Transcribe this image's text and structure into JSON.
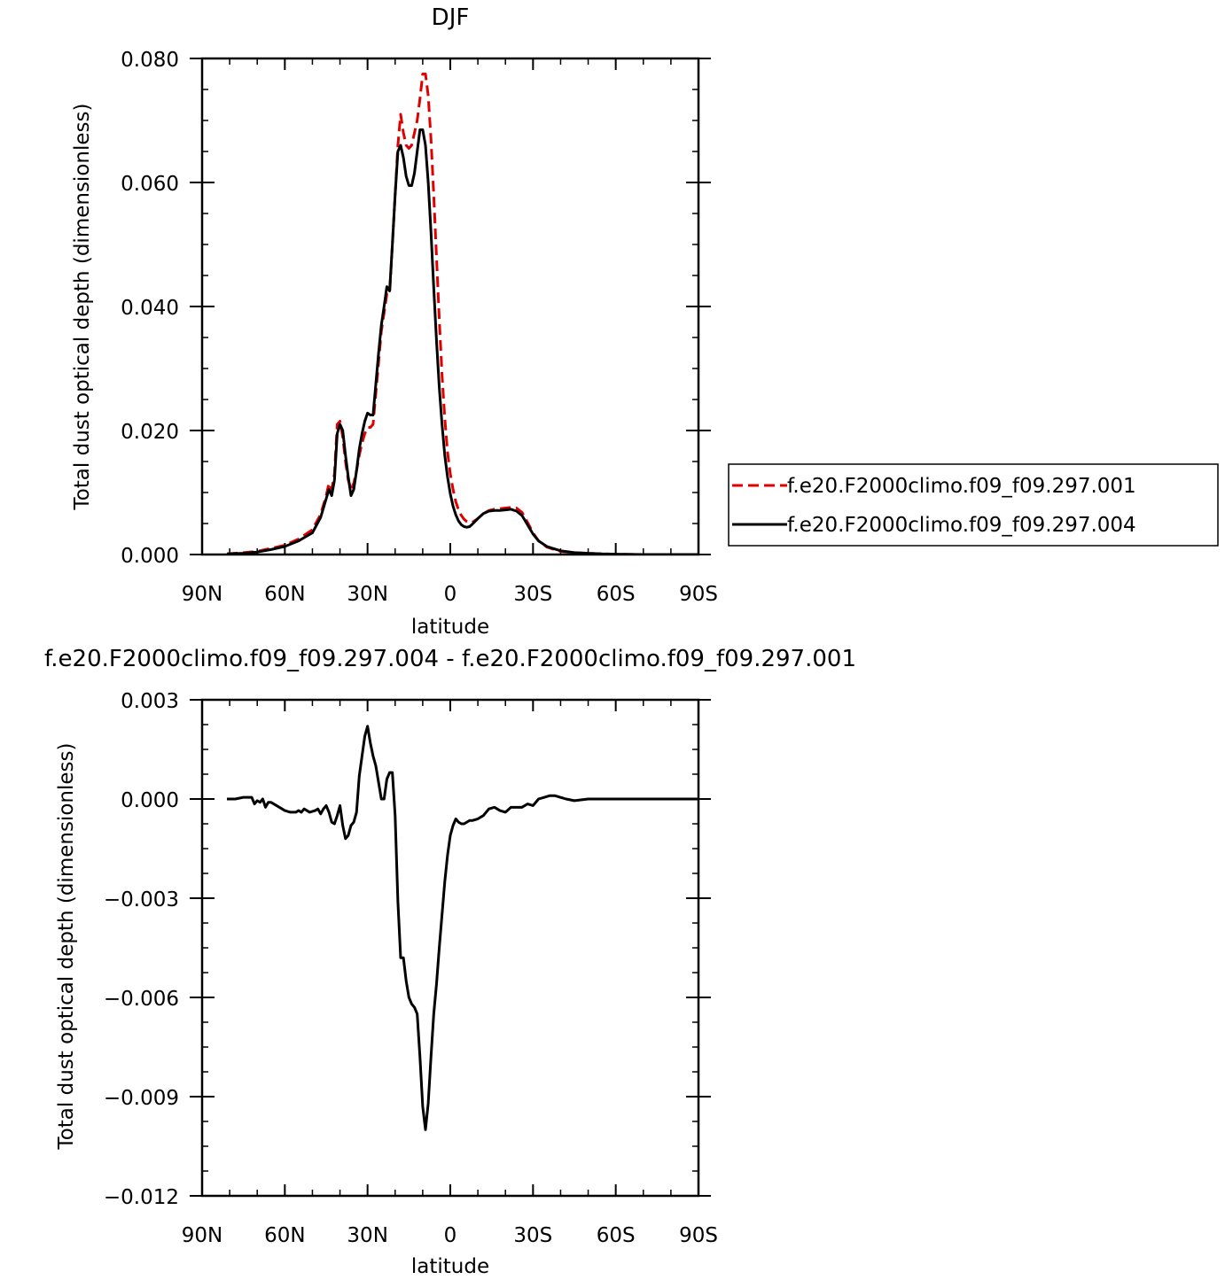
{
  "chart_data": [
    {
      "type": "line",
      "title": "DJF",
      "xlabel": "latitude",
      "ylabel": "Total dust optical depth (dimensionless)",
      "xlim": [
        90,
        -90
      ],
      "ylim": [
        0,
        0.08
      ],
      "x_tick_values": [
        90,
        60,
        30,
        0,
        -30,
        -60,
        -90
      ],
      "x_tick_labels": [
        "90N",
        "60N",
        "30N",
        "0",
        "30S",
        "60S",
        "90S"
      ],
      "y_tick_values": [
        0,
        0.02,
        0.04,
        0.06,
        0.08
      ],
      "y_tick_labels": [
        "0.000",
        "0.020",
        "0.040",
        "0.060",
        "0.080"
      ],
      "legend_position": "right",
      "series": [
        {
          "name": "f.e20.F2000climo.f09_f09.297.001",
          "color": "#e00000",
          "dash": "dashed",
          "x": [
            81,
            75,
            70,
            65,
            60,
            55,
            50,
            47,
            45,
            44,
            43,
            42,
            41,
            40,
            39,
            38,
            37,
            36,
            35,
            34,
            33,
            32,
            31,
            30,
            29,
            28,
            27,
            26,
            25,
            24,
            23,
            22,
            21,
            20,
            19,
            18,
            17,
            16,
            15,
            14,
            13,
            12,
            11,
            10,
            9,
            8,
            7,
            6,
            5,
            4,
            3,
            2,
            1,
            0,
            -1,
            -2,
            -3,
            -4,
            -5,
            -6,
            -7,
            -8,
            -10,
            -12,
            -14,
            -16,
            -18,
            -20,
            -22,
            -24,
            -26,
            -28,
            -30,
            -32,
            -35,
            -40,
            -45,
            -50,
            -55,
            -60,
            -70,
            -80,
            -90
          ],
          "y": [
            0.0001,
            0.0003,
            0.0005,
            0.001,
            0.0015,
            0.0025,
            0.004,
            0.0065,
            0.0095,
            0.0115,
            0.0105,
            0.013,
            0.021,
            0.0215,
            0.019,
            0.015,
            0.012,
            0.0105,
            0.0115,
            0.0135,
            0.016,
            0.018,
            0.0195,
            0.0205,
            0.0205,
            0.021,
            0.026,
            0.031,
            0.036,
            0.039,
            0.042,
            0.042,
            0.05,
            0.058,
            0.066,
            0.071,
            0.068,
            0.066,
            0.0655,
            0.066,
            0.068,
            0.07,
            0.0735,
            0.0775,
            0.0775,
            0.074,
            0.067,
            0.058,
            0.048,
            0.038,
            0.029,
            0.022,
            0.0165,
            0.013,
            0.0105,
            0.0085,
            0.0072,
            0.0063,
            0.0057,
            0.0053,
            0.0051,
            0.0052,
            0.0058,
            0.0066,
            0.0071,
            0.0073,
            0.0074,
            0.0075,
            0.0076,
            0.0075,
            0.0068,
            0.0052,
            0.0035,
            0.0022,
            0.0012,
            0.0005,
            0.0003,
            0.0002,
            0.0001,
            5e-05,
            0.0,
            0.0,
            0.0
          ]
        },
        {
          "name": "f.e20.F2000climo.f09_f09.297.004",
          "color": "#000000",
          "dash": "solid",
          "x": [
            81,
            75,
            70,
            65,
            60,
            55,
            50,
            47,
            45,
            44,
            43,
            42,
            41,
            40,
            39,
            38,
            37,
            36,
            35,
            34,
            33,
            32,
            31,
            30,
            29,
            28,
            27,
            26,
            25,
            24,
            23,
            22,
            21,
            20,
            19,
            18,
            17,
            16,
            15,
            14,
            13,
            12,
            11,
            10,
            9,
            8,
            7,
            6,
            5,
            4,
            3,
            2,
            1,
            0,
            -1,
            -2,
            -3,
            -4,
            -5,
            -6,
            -7,
            -8,
            -10,
            -12,
            -14,
            -16,
            -18,
            -20,
            -22,
            -24,
            -26,
            -28,
            -30,
            -32,
            -35,
            -40,
            -45,
            -50,
            -55,
            -60,
            -70,
            -80,
            -90
          ],
          "y": [
            0.0001,
            0.0002,
            0.0004,
            0.0008,
            0.0013,
            0.0022,
            0.0035,
            0.006,
            0.009,
            0.0105,
            0.0095,
            0.012,
            0.0195,
            0.021,
            0.02,
            0.016,
            0.0125,
            0.0095,
            0.0105,
            0.0135,
            0.017,
            0.0195,
            0.0215,
            0.0228,
            0.0225,
            0.0225,
            0.0275,
            0.0325,
            0.037,
            0.04,
            0.0432,
            0.0425,
            0.05,
            0.058,
            0.065,
            0.066,
            0.064,
            0.061,
            0.0595,
            0.0595,
            0.0615,
            0.065,
            0.0685,
            0.0685,
            0.066,
            0.06,
            0.052,
            0.043,
            0.0345,
            0.027,
            0.021,
            0.016,
            0.0125,
            0.0098,
            0.0078,
            0.0064,
            0.0054,
            0.0048,
            0.0045,
            0.0044,
            0.0045,
            0.0049,
            0.0058,
            0.0066,
            0.007,
            0.0071,
            0.0071,
            0.0072,
            0.0073,
            0.007,
            0.0063,
            0.0048,
            0.0033,
            0.0022,
            0.0013,
            0.0006,
            0.0003,
            0.0002,
            0.0001,
            5e-05,
            0.0,
            0.0,
            0.0
          ]
        }
      ]
    },
    {
      "type": "line",
      "title": "f.e20.F2000climo.f09_f09.297.004 - f.e20.F2000climo.f09_f09.297.001",
      "xlabel": "latitude",
      "ylabel": "Total dust optical depth (dimensionless)",
      "xlim": [
        90,
        -90
      ],
      "ylim": [
        -0.012,
        0.003
      ],
      "x_tick_values": [
        90,
        60,
        30,
        0,
        -30,
        -60,
        -90
      ],
      "x_tick_labels": [
        "90N",
        "60N",
        "30N",
        "0",
        "30S",
        "60S",
        "90S"
      ],
      "y_tick_values": [
        0.003,
        0.0,
        -0.003,
        -0.006,
        -0.009,
        -0.012
      ],
      "y_tick_labels": [
        "0.003",
        "0.000",
        "−0.003",
        "−0.006",
        "−0.009",
        "−0.012"
      ],
      "series": [
        {
          "color": "#000000",
          "dash": "solid",
          "x": [
            81,
            78,
            75,
            72,
            71,
            70,
            69,
            68,
            67,
            66,
            65,
            63,
            61,
            60,
            58,
            56,
            55,
            54,
            53,
            51,
            49,
            48,
            47,
            46,
            45,
            44,
            43,
            42,
            41,
            40,
            39,
            38,
            37,
            36,
            35,
            34,
            33,
            32,
            31,
            30,
            29,
            28,
            27,
            26,
            25,
            24,
            23,
            22,
            21,
            20,
            19,
            18,
            17,
            16,
            15,
            14,
            13,
            12,
            11,
            10,
            9,
            8,
            7,
            6,
            5,
            4,
            3,
            2,
            1,
            0,
            -1,
            -2,
            -3,
            -4,
            -5,
            -6,
            -7,
            -8,
            -10,
            -12,
            -14,
            -16,
            -18,
            -20,
            -22,
            -24,
            -26,
            -28,
            -30,
            -32,
            -34,
            -36,
            -38,
            -40,
            -42,
            -45,
            -50,
            -55,
            -60,
            -70,
            -80,
            -90
          ],
          "y": [
            0.0,
            0.0,
            5e-05,
            5e-05,
            -0.00015,
            -5e-05,
            -0.0001,
            0.0,
            -0.00025,
            -0.0001,
            -0.0001,
            -0.0002,
            -0.0003,
            -0.00035,
            -0.0004,
            -0.0004,
            -0.00035,
            -0.0004,
            -0.0003,
            -0.0004,
            -0.00035,
            -0.0003,
            -0.00045,
            -0.0003,
            -0.0002,
            -0.0004,
            -0.0007,
            -0.00075,
            -0.0005,
            -0.0002,
            -0.0008,
            -0.0012,
            -0.0011,
            -0.0008,
            -0.0007,
            -0.0004,
            0.0007,
            0.0013,
            0.0019,
            0.0022,
            0.0017,
            0.0013,
            0.001,
            0.0005,
            0.0,
            0.0,
            0.0006,
            0.0008,
            0.0008,
            -0.0005,
            -0.0031,
            -0.0048,
            -0.0048,
            -0.0055,
            -0.006,
            -0.0062,
            -0.0063,
            -0.0065,
            -0.0078,
            -0.0093,
            -0.01,
            -0.0092,
            -0.0078,
            -0.0065,
            -0.0056,
            -0.0045,
            -0.0035,
            -0.0025,
            -0.0017,
            -0.0011,
            -0.0008,
            -0.0006,
            -0.0007,
            -0.00075,
            -0.00075,
            -0.0007,
            -0.00065,
            -0.00065,
            -0.0006,
            -0.0005,
            -0.0003,
            -0.00025,
            -0.00035,
            -0.0004,
            -0.00025,
            -0.00025,
            -0.00025,
            -0.00015,
            -0.0002,
            0.0,
            5e-05,
            0.0001,
            0.0001,
            5e-05,
            0.0,
            -5e-05,
            0.0,
            0.0,
            0.0,
            0.0,
            0.0,
            0.0
          ]
        }
      ]
    }
  ]
}
